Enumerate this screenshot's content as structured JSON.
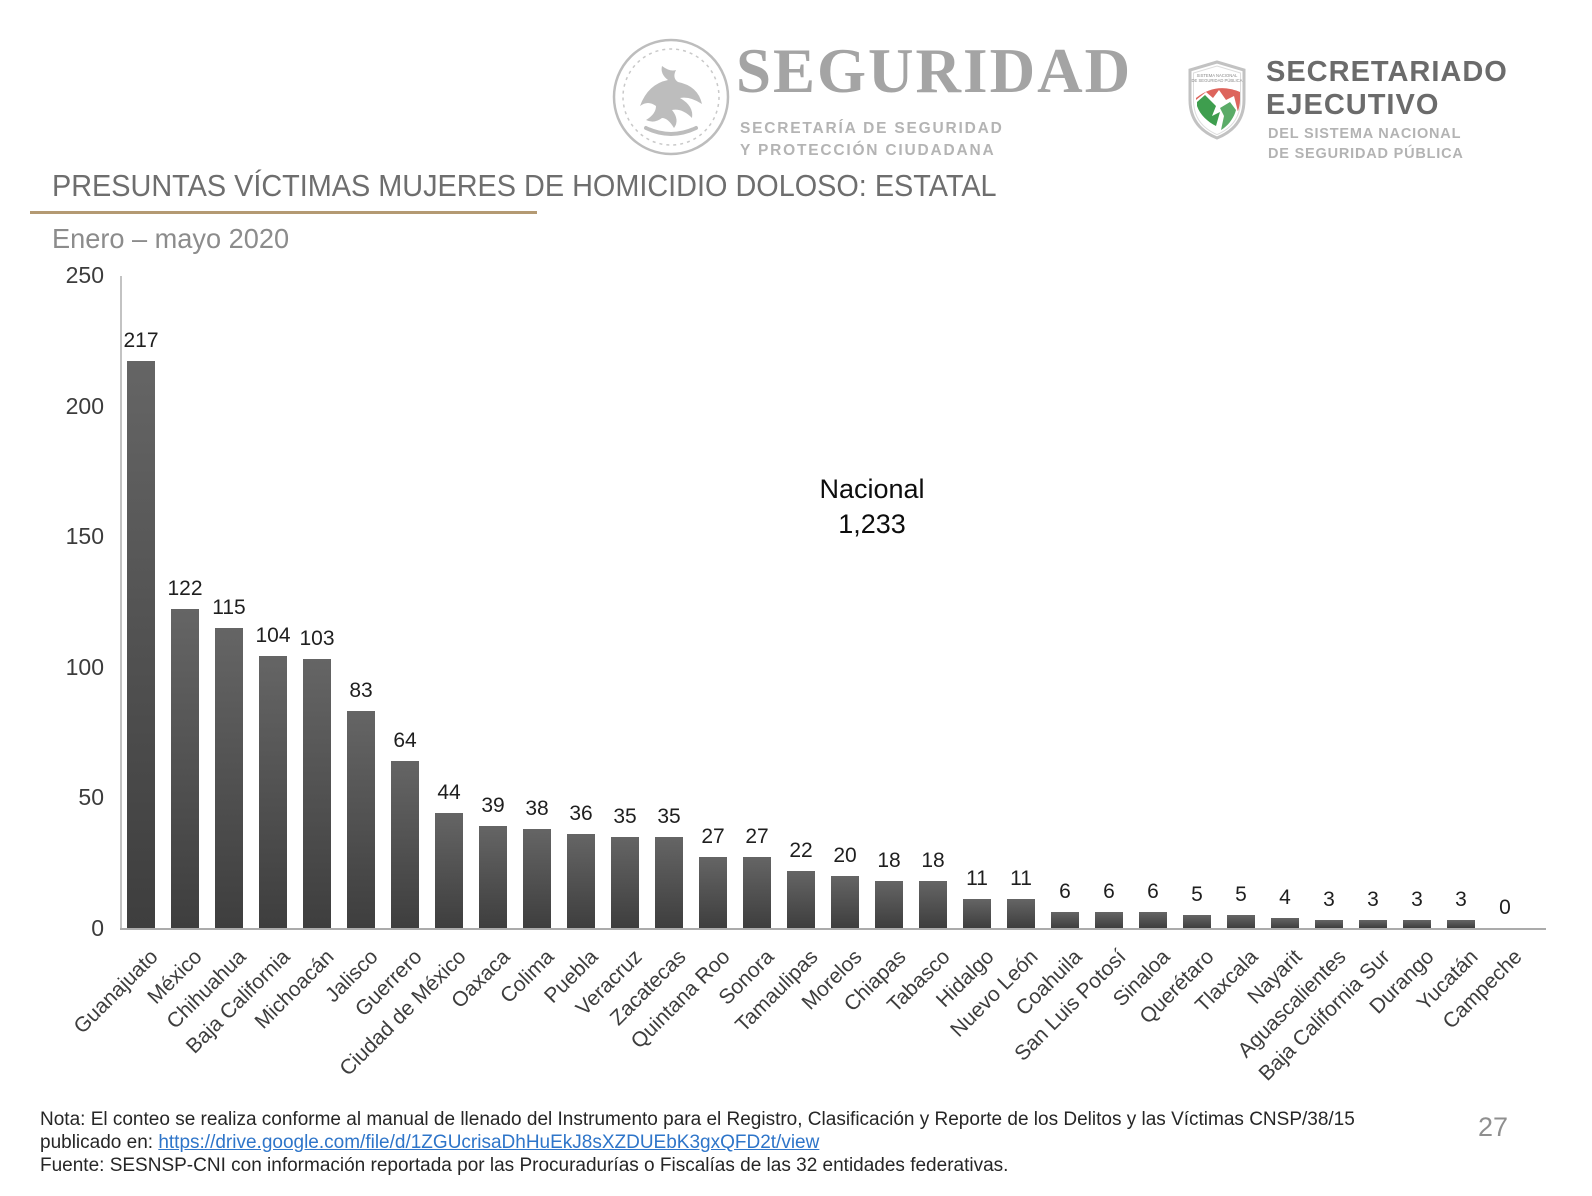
{
  "page": {
    "number": "27"
  },
  "header": {
    "seguridad_logo": {
      "wordmark": "SEGURIDAD",
      "subtitle_line1": "SECRETARÍA DE SEGURIDAD",
      "subtitle_line2": "Y PROTECCIÓN CIUDADANA"
    },
    "secretariado_logo": {
      "title_line1": "SECRETARIADO",
      "title_line2": "EJECUTIVO",
      "subtitle_line1": "DEL SISTEMA NACIONAL",
      "subtitle_line2": "DE SEGURIDAD PÚBLICA",
      "shield_caption_line1": "SISTEMA NACIONAL",
      "shield_caption_line2": "DE SEGURIDAD PÚBLICA"
    }
  },
  "title": "PRESUNTAS VÍCTIMAS MUJERES DE HOMICIDIO DOLOSO: ESTATAL",
  "subtitle": "Enero – mayo 2020",
  "chart_data": {
    "type": "bar",
    "title": "PRESUNTAS VÍCTIMAS MUJERES DE HOMICIDIO DOLOSO: ESTATAL",
    "subtitle": "Enero – mayo 2020",
    "categories": [
      "Guanajuato",
      "México",
      "Chihuahua",
      "Baja California",
      "Michoacán",
      "Jalisco",
      "Guerrero",
      "Ciudad de México",
      "Oaxaca",
      "Colima",
      "Puebla",
      "Veracruz",
      "Zacatecas",
      "Quintana Roo",
      "Sonora",
      "Tamaulipas",
      "Morelos",
      "Chiapas",
      "Tabasco",
      "Hidalgo",
      "Nuevo León",
      "Coahuila",
      "San Luis Potosí",
      "Sinaloa",
      "Querétaro",
      "Tlaxcala",
      "Nayarit",
      "Aguascalientes",
      "Baja California Sur",
      "Durango",
      "Yucatán",
      "Campeche"
    ],
    "values": [
      217,
      122,
      115,
      104,
      103,
      83,
      64,
      44,
      39,
      38,
      36,
      35,
      35,
      27,
      27,
      22,
      20,
      18,
      18,
      11,
      11,
      6,
      6,
      6,
      5,
      5,
      4,
      3,
      3,
      3,
      3,
      0
    ],
    "xlabel": "",
    "ylabel": "",
    "ylim": [
      0,
      250
    ],
    "yticks": [
      0,
      50,
      100,
      150,
      200,
      250
    ],
    "grid": false,
    "legend": "none",
    "value_labels": true,
    "bar_color": "#575757",
    "annotation": {
      "label": "Nacional",
      "value": "1,233"
    }
  },
  "footer": {
    "note_line1": "Nota: El conteo se realiza conforme al manual de llenado del Instrumento para el Registro, Clasificación y Reporte de los Delitos y las Víctimas CNSP/38/15",
    "note_line2_prefix": "publicado en: ",
    "note_link": "https://drive.google.com/file/d/1ZGUcrisaDhHuEkJ8sXZDUEbK3gxQFD2t/view",
    "source": "Fuente: SESNSP-CNI con información reportada por las Procuradurías o Fiscalías de las 32 entidades federativas."
  },
  "colors": {
    "bar": "#575757",
    "title_text": "#6e6e6e",
    "title_rule": "#b49a73",
    "link": "#2e75c9",
    "logo_gray": "#a4a4a4",
    "shield_green": "#3e9e4e",
    "shield_red": "#d9534a"
  }
}
